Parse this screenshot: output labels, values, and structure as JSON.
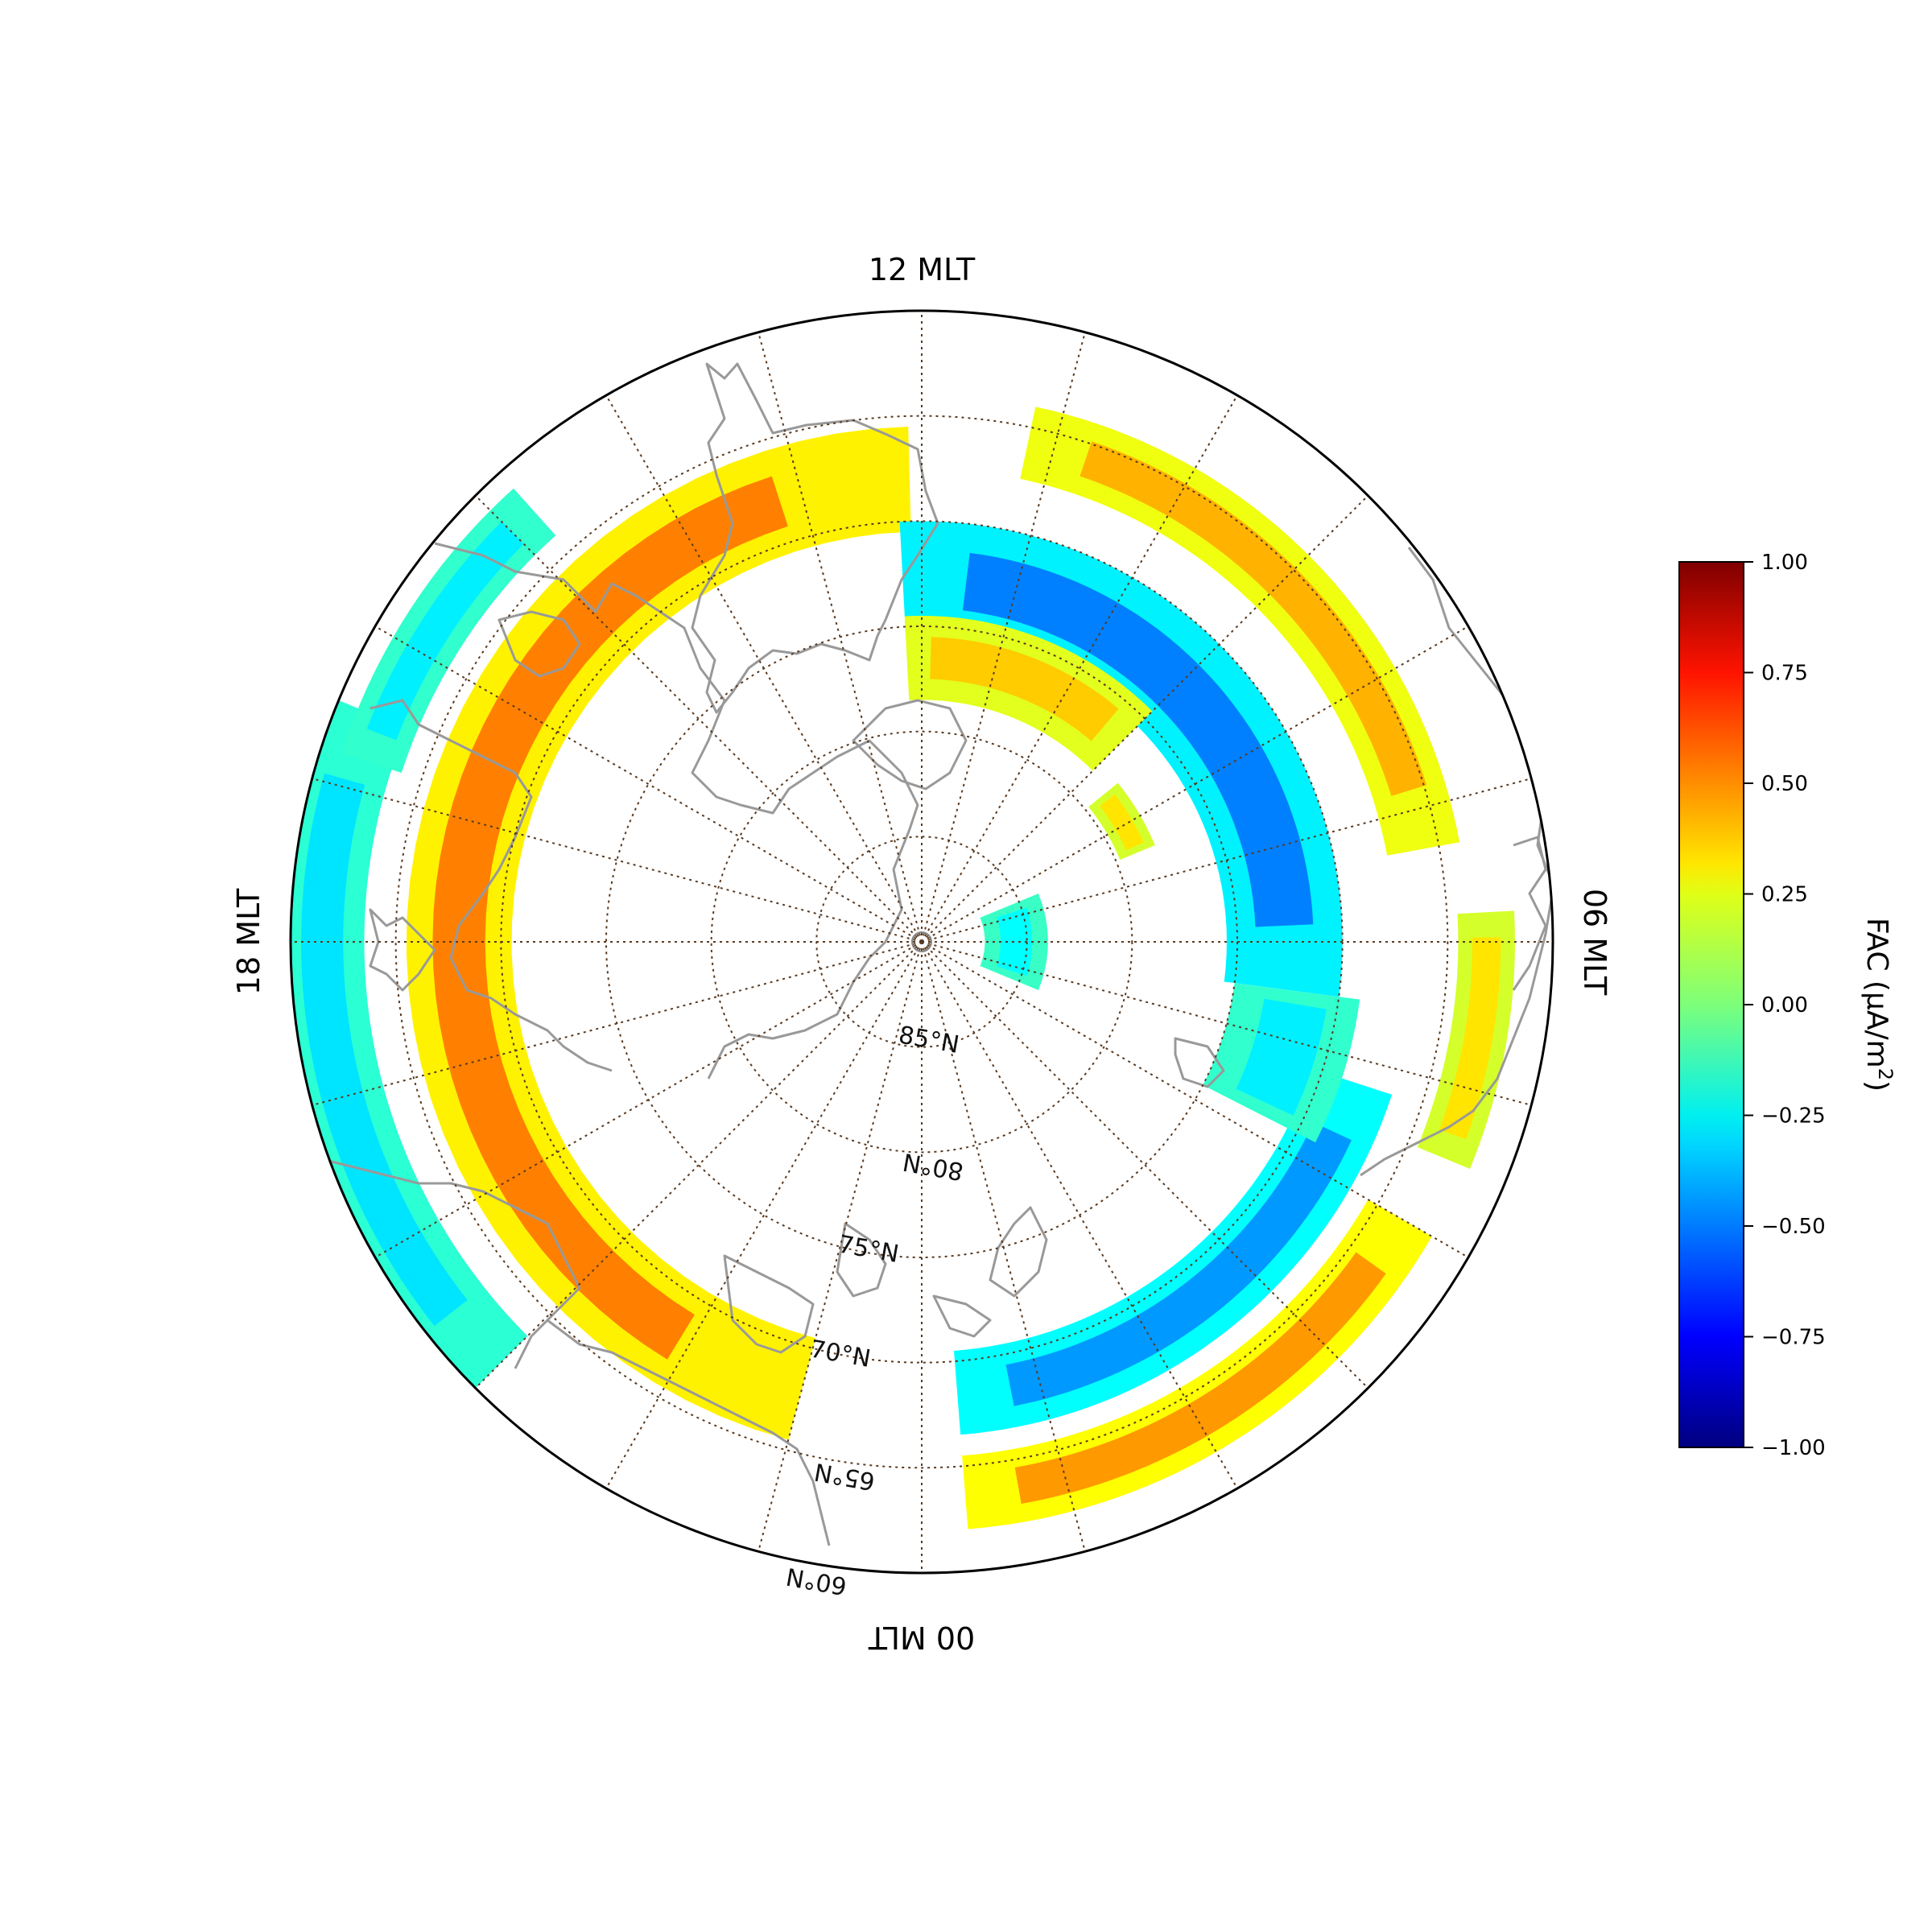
{
  "map": {
    "projection": "north polar stereographic, MLT sectors",
    "mlt_labels": {
      "top": "12 MLT",
      "left": "18 MLT",
      "right": "06 MLT",
      "bottom": "00 MLT"
    },
    "latitude_labels": [
      "85°N",
      "80°N",
      "75°N",
      "70°N",
      "65°N",
      "60°N"
    ],
    "latitudes": [
      85,
      80,
      75,
      70,
      65,
      60
    ],
    "meridian_step_hours": 1,
    "grid_color": "#5a3a20",
    "coastline_color": "#999999",
    "colormap": "jet"
  },
  "colorbar": {
    "label_main": "FAC (μA/m",
    "label_sup": "2",
    "label_end": ")",
    "ticks": [
      "1.00",
      "0.75",
      "0.50",
      "0.25",
      "0.00",
      "−0.25",
      "−0.50",
      "−0.75",
      "−1.00"
    ],
    "tick_values": [
      1.0,
      0.75,
      0.5,
      0.25,
      0.0,
      -0.25,
      -0.5,
      -0.75,
      -1.0
    ],
    "min": -1.0,
    "max": 1.0
  },
  "fac_bands": [
    {
      "name": "dusk-upward-arc",
      "lat": [
        65.5,
        70.5
      ],
      "mlt": [
        12.1,
        23.0
      ],
      "value": 0.5
    },
    {
      "name": "dusk-outer-downward",
      "lat": [
        59.5,
        63.5
      ],
      "mlt": [
        16.5,
        21.0
      ],
      "value": -0.3
    },
    {
      "name": "dusk-outer-downward-2",
      "lat": [
        61.0,
        64.0
      ],
      "mlt": [
        14.8,
        16.8
      ],
      "value": -0.28
    },
    {
      "name": "dawn-downward-arc",
      "lat": [
        70.0,
        75.5
      ],
      "mlt": [
        5.5,
        12.2
      ],
      "value": -0.5
    },
    {
      "name": "dawn-upward-arc",
      "lat": [
        64.0,
        67.5
      ],
      "mlt": [
        6.7,
        11.2
      ],
      "value": 0.4
    },
    {
      "name": "dayside-upward-inner",
      "lat": [
        74.5,
        78.5
      ],
      "mlt": [
        9.0,
        12.2
      ],
      "value": 0.35
    },
    {
      "name": "night-downward-arc",
      "lat": [
        66.5,
        70.5
      ],
      "mlt": [
        0.3,
        4.8
      ],
      "value": -0.45
    },
    {
      "name": "night-upward-arc",
      "lat": [
        62.0,
        65.5
      ],
      "mlt": [
        0.3,
        4.0
      ],
      "value": 0.45
    },
    {
      "name": "dawn-patch",
      "lat": [
        69.0,
        75.0
      ],
      "mlt": [
        4.2,
        5.5
      ],
      "value": -0.28
    },
    {
      "name": "dawn-outer-patch",
      "lat": [
        61.8,
        64.5
      ],
      "mlt": [
        4.5,
        6.2
      ],
      "value": 0.3
    },
    {
      "name": "polar-patch-1",
      "lat": [
        84.0,
        87.0
      ],
      "mlt": [
        4.5,
        7.5
      ],
      "value": -0.25
    },
    {
      "name": "polar-patch-2",
      "lat": [
        78.0,
        79.8
      ],
      "mlt": [
        7.5,
        8.6
      ],
      "value": 0.3
    }
  ]
}
